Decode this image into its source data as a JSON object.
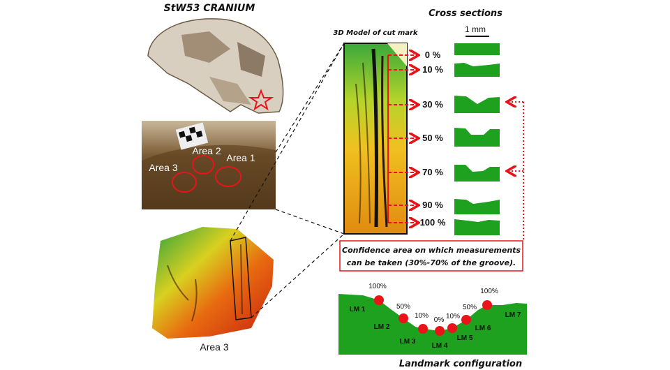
{
  "cranium_title": "StW53 CRANIUM",
  "photo_labels": [
    "Area 2",
    "Area 1",
    "Area 3"
  ],
  "area3_label": "Area 3",
  "model_title": "3D Model of cut mark",
  "cross_title": "Cross sections",
  "scale_label": "1 mm",
  "sections": [
    "0 %",
    "10 %",
    "30 %",
    "50 %",
    "70 %",
    "90 %",
    "100 %"
  ],
  "confidence": {
    "line1": "Confidence area on which measurements",
    "line2": "can be taken (30%-70% of  the groove)."
  },
  "landmarks": {
    "title": "Landmark configuration",
    "labels": [
      "LM 1",
      "LM 2",
      "LM 3",
      "LM 4",
      "LM 5",
      "LM 6",
      "LM 7"
    ],
    "percents": [
      "100%",
      "50%",
      "10%",
      "0%",
      "10%",
      "50%",
      "100%"
    ]
  },
  "colors": {
    "accent_red": "#e8141a",
    "profile_green": "#1ea11e"
  }
}
